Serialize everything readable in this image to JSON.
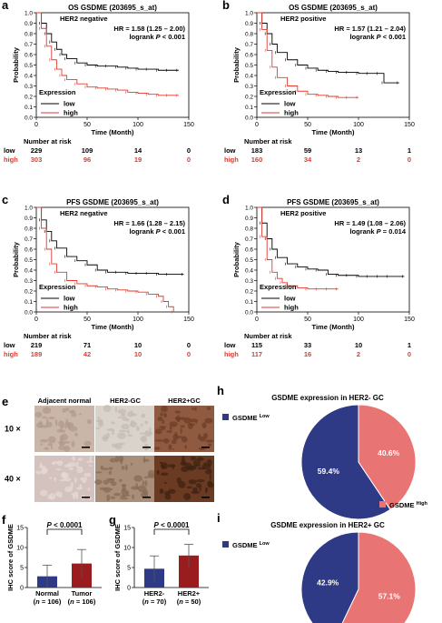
{
  "colors": {
    "low": "#000000",
    "high": "#e03a2e",
    "low_pie": "#2f3a86",
    "high_pie": "#e87474",
    "bar_normal": "#2f3a86",
    "bar_tumor": "#9a1c1f",
    "bar_her2neg": "#2f3a86",
    "bar_her2pos": "#9a1c1f"
  },
  "km_common": {
    "xlabel": "Time (Month)",
    "ylabel": "Probability",
    "xticks": [
      "0",
      "50",
      "100",
      "150"
    ],
    "yticks": [
      "0.0",
      "0.1",
      "0.2",
      "0.3",
      "0.4",
      "0.5",
      "0.6",
      "0.7",
      "0.8",
      "0.9",
      "1.0"
    ],
    "legend_title": "Expression",
    "legend_low": "low",
    "legend_high": "high",
    "risk_title": "Number at risk",
    "risk_low_label": "low",
    "risk_high_label": "high"
  },
  "panels": {
    "a": {
      "letter": "a",
      "title": "OS   GSDME (203695_s_at)",
      "subgroup": "HER2 negative",
      "hr": "HR = 1.58 (1.25 – 2.00)",
      "logrank": "logrank ",
      "p": "P",
      "pval": " < 0.001",
      "risk_low": [
        "229",
        "109",
        "14",
        "0"
      ],
      "risk_high": [
        "303",
        "96",
        "19",
        "0"
      ]
    },
    "b": {
      "letter": "b",
      "title": "OS   GSDME (203695_s_at)",
      "subgroup": "HER2 positive",
      "hr": "HR = 1.57 (1.21 – 2.04)",
      "logrank": "logrank ",
      "p": "P",
      "pval": " < 0.001",
      "risk_low": [
        "183",
        "59",
        "13",
        "1"
      ],
      "risk_high": [
        "160",
        "34",
        "2",
        "0"
      ]
    },
    "c": {
      "letter": "c",
      "title": "PFS   GSDME (203695_s_at)",
      "subgroup": "HER2 negative",
      "hr": "HR = 1.66 (1.28 – 2.15)",
      "logrank": "logrank ",
      "p": "P",
      "pval": " < 0.001",
      "risk_low": [
        "219",
        "71",
        "10",
        "0"
      ],
      "risk_high": [
        "189",
        "42",
        "10",
        "0"
      ]
    },
    "d": {
      "letter": "d",
      "title": "PFS   GSDME (203695_s_at)",
      "subgroup": "HER2 positive",
      "hr": "HR = 1.49 (1.08 – 2.06)",
      "logrank": "logrank ",
      "p": "P",
      "pval": " = 0.014",
      "risk_low": [
        "115",
        "33",
        "10",
        "1"
      ],
      "risk_high": [
        "117",
        "16",
        "2",
        "0"
      ]
    }
  },
  "ihc": {
    "letter": "e",
    "columns": [
      "Adjacent normal",
      "HER2-GC",
      "HER2+GC"
    ],
    "rows": [
      "10 ×",
      "40 ×"
    ]
  },
  "bar_f": {
    "letter": "f",
    "ylabel": "IHC score of GSDME",
    "p": "P",
    "pval": " < 0.0001",
    "cat1": "Normal",
    "cat2": "Tumor",
    "n1": "(n = 106)",
    "n2": "(n = 106)",
    "n1a": "(",
    "n1b": "n",
    "n1c": " = 106)",
    "yticks": [
      "0",
      "5",
      "10",
      "15"
    ]
  },
  "bar_g": {
    "letter": "g",
    "ylabel": "IHC score of GSDME",
    "p": "P",
    "pval": " < 0.0001",
    "cat1": "HER2-",
    "cat2": "HER2+",
    "n1a": "(",
    "n1b": "n",
    "n1c": " = 70)",
    "n2a": "(",
    "n2b": "n",
    "n2c": " = 50)",
    "yticks": [
      "0",
      "5",
      "10",
      "15"
    ]
  },
  "pie_h": {
    "letter": "h",
    "title": "GSDME expression in HER2- GC",
    "low_label": "GSDME",
    "low_sup": "Low",
    "high_label": "GSDME",
    "high_sup": "High",
    "low_pct": "59.4%",
    "high_pct": "40.6%"
  },
  "pie_i": {
    "letter": "i",
    "title": "GSDME expression in HER2+ GC",
    "low_label": "GSDME",
    "low_sup": "Low",
    "high_label": "GSDME",
    "high_sup": "High",
    "low_pct": "42.9%",
    "high_pct": "57.1%"
  },
  "chart_data": [
    {
      "type": "line",
      "name": "a",
      "xlim": [
        0,
        150
      ],
      "ylim": [
        0,
        1
      ],
      "series": [
        {
          "name": "low",
          "x": [
            0,
            5,
            10,
            15,
            20,
            25,
            30,
            40,
            50,
            60,
            70,
            80,
            90,
            100,
            110,
            120,
            130,
            140
          ],
          "y": [
            1.0,
            0.9,
            0.8,
            0.72,
            0.65,
            0.6,
            0.56,
            0.52,
            0.5,
            0.49,
            0.49,
            0.48,
            0.47,
            0.46,
            0.46,
            0.45,
            0.45,
            0.45
          ]
        },
        {
          "name": "high",
          "x": [
            0,
            5,
            10,
            15,
            20,
            25,
            30,
            40,
            50,
            60,
            70,
            80,
            90,
            100,
            110,
            120,
            130,
            140
          ],
          "y": [
            1.0,
            0.85,
            0.68,
            0.55,
            0.46,
            0.4,
            0.36,
            0.32,
            0.29,
            0.28,
            0.27,
            0.26,
            0.24,
            0.23,
            0.22,
            0.21,
            0.21,
            0.21
          ]
        }
      ]
    },
    {
      "type": "line",
      "name": "b",
      "xlim": [
        0,
        150
      ],
      "ylim": [
        0,
        1
      ],
      "series": [
        {
          "name": "low",
          "x": [
            0,
            5,
            10,
            15,
            20,
            30,
            40,
            50,
            60,
            70,
            80,
            90,
            100,
            110,
            120,
            125,
            140
          ],
          "y": [
            1.0,
            0.9,
            0.8,
            0.7,
            0.62,
            0.55,
            0.5,
            0.47,
            0.45,
            0.44,
            0.43,
            0.43,
            0.42,
            0.42,
            0.42,
            0.33,
            0.33
          ]
        },
        {
          "name": "high",
          "x": [
            0,
            5,
            10,
            15,
            20,
            30,
            40,
            50,
            60,
            70,
            80,
            90,
            100
          ],
          "y": [
            1.0,
            0.84,
            0.64,
            0.48,
            0.38,
            0.3,
            0.25,
            0.22,
            0.21,
            0.2,
            0.19,
            0.19,
            0.19
          ]
        }
      ]
    },
    {
      "type": "line",
      "name": "c",
      "xlim": [
        0,
        150
      ],
      "ylim": [
        0,
        1
      ],
      "series": [
        {
          "name": "low",
          "x": [
            0,
            5,
            10,
            15,
            20,
            30,
            40,
            50,
            60,
            70,
            80,
            90,
            100,
            110,
            120,
            130,
            145
          ],
          "y": [
            1.0,
            0.88,
            0.77,
            0.68,
            0.61,
            0.53,
            0.49,
            0.45,
            0.4,
            0.38,
            0.38,
            0.37,
            0.37,
            0.37,
            0.36,
            0.36,
            0.36
          ]
        },
        {
          "name": "high",
          "x": [
            0,
            5,
            10,
            15,
            20,
            30,
            40,
            50,
            60,
            70,
            80,
            90,
            100,
            110,
            120,
            125,
            130,
            135
          ],
          "y": [
            1.0,
            0.8,
            0.6,
            0.46,
            0.38,
            0.3,
            0.27,
            0.25,
            0.24,
            0.22,
            0.21,
            0.2,
            0.19,
            0.17,
            0.15,
            0.1,
            0.05,
            0.0
          ]
        }
      ]
    },
    {
      "type": "line",
      "name": "d",
      "xlim": [
        0,
        150
      ],
      "ylim": [
        0,
        1
      ],
      "series": [
        {
          "name": "low",
          "x": [
            0,
            5,
            10,
            15,
            20,
            30,
            40,
            50,
            60,
            70,
            80,
            90,
            100,
            110,
            120,
            130,
            145
          ],
          "y": [
            1.0,
            0.85,
            0.7,
            0.6,
            0.52,
            0.46,
            0.43,
            0.41,
            0.4,
            0.36,
            0.35,
            0.35,
            0.34,
            0.34,
            0.34,
            0.34,
            0.34
          ]
        },
        {
          "name": "high",
          "x": [
            0,
            5,
            10,
            15,
            20,
            25,
            30,
            40,
            50,
            60,
            70,
            80
          ],
          "y": [
            1.0,
            0.72,
            0.5,
            0.38,
            0.32,
            0.28,
            0.25,
            0.23,
            0.22,
            0.22,
            0.22,
            0.22
          ]
        }
      ]
    },
    {
      "type": "bar",
      "name": "f",
      "categories": [
        "Normal",
        "Tumor"
      ],
      "values": [
        2.8,
        6.0
      ],
      "errors": [
        2.8,
        3.5
      ],
      "ylim": [
        0,
        15
      ],
      "ylabel": "IHC score of GSDME"
    },
    {
      "type": "bar",
      "name": "g",
      "categories": [
        "HER2-",
        "HER2+"
      ],
      "values": [
        4.7,
        8.0
      ],
      "errors": [
        3.2,
        2.8
      ],
      "ylim": [
        0,
        15
      ],
      "ylabel": "IHC score of GSDME"
    },
    {
      "type": "pie",
      "name": "h",
      "title": "GSDME expression in HER2- GC",
      "labels": [
        "GSDME Low",
        "GSDME High"
      ],
      "values": [
        59.4,
        40.6
      ]
    },
    {
      "type": "pie",
      "name": "i",
      "title": "GSDME expression in HER2+ GC",
      "labels": [
        "GSDME Low",
        "GSDME High"
      ],
      "values": [
        42.9,
        57.1
      ]
    }
  ]
}
